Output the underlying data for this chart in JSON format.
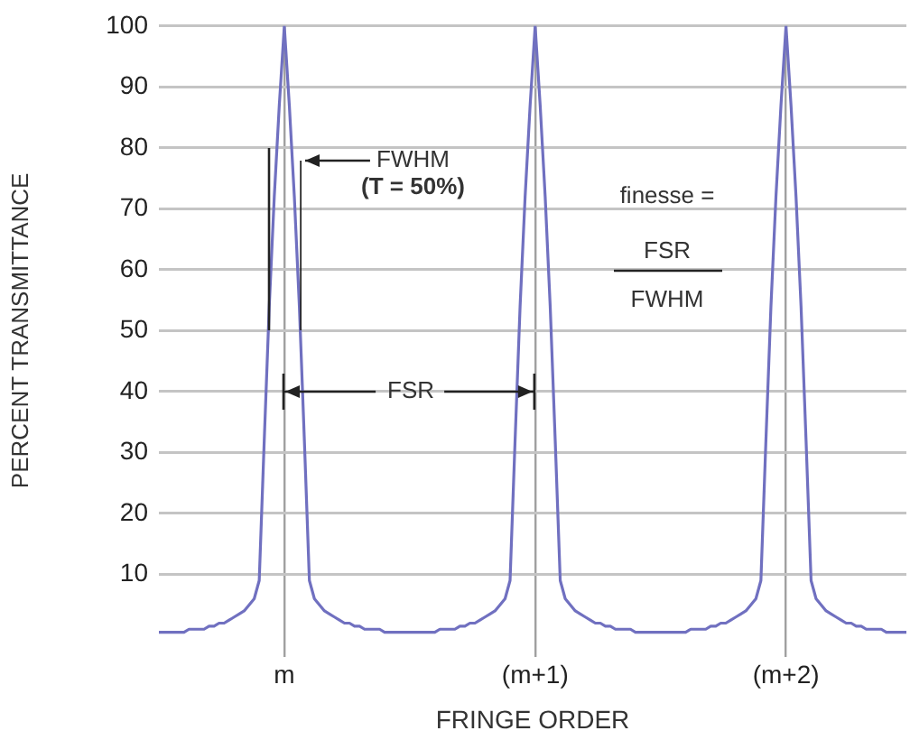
{
  "chart_data": {
    "type": "line",
    "xlabel": "FRINGE ORDER",
    "ylabel": "PERCENT TRANSMITTANCE",
    "categories": [
      null,
      null,
      null,
      null,
      null,
      null,
      null,
      null,
      null,
      null,
      null,
      null,
      null,
      null,
      null,
      null,
      null,
      null,
      null,
      null,
      null,
      null,
      null,
      null,
      null,
      "m",
      null,
      null,
      null,
      null,
      null,
      null,
      null,
      null,
      null,
      null,
      null,
      null,
      null,
      null,
      null,
      null,
      null,
      null,
      null,
      null,
      null,
      null,
      null,
      null,
      null,
      null,
      null,
      null,
      null,
      null,
      null,
      null,
      null,
      null,
      null,
      null,
      null,
      null,
      null,
      null,
      null,
      null,
      null,
      null,
      null,
      null,
      null,
      null,
      null,
      "(m+1)",
      null,
      null,
      null,
      null,
      null,
      null,
      null,
      null,
      null,
      null,
      null,
      null,
      null,
      null,
      null,
      null,
      null,
      null,
      null,
      null,
      null,
      null,
      null,
      null,
      null,
      null,
      null,
      null,
      null,
      null,
      null,
      null,
      null,
      null,
      null,
      null,
      null,
      null,
      null,
      null,
      null,
      null,
      null,
      null,
      null,
      null,
      null,
      null,
      null,
      "(m+2)",
      null,
      null,
      null,
      null,
      null,
      null,
      null,
      null,
      null,
      null,
      null,
      null,
      null,
      null,
      null,
      null,
      null,
      null,
      null,
      null,
      null,
      null,
      null,
      null
    ],
    "series": [
      {
        "color": "#7070c0",
        "values": [
          0.5,
          0.5,
          0.5,
          0.5,
          0.5,
          0.5,
          1,
          1,
          1,
          1,
          1.5,
          1.5,
          2,
          2,
          2.5,
          3,
          3.5,
          4,
          5,
          6,
          9,
          32,
          54,
          72,
          87,
          100,
          87,
          72,
          54,
          32,
          9,
          6,
          5,
          4,
          3.5,
          3,
          2.5,
          2,
          2,
          1.5,
          1.5,
          1,
          1,
          1,
          1,
          0.5,
          0.5,
          0.5,
          0.5,
          0.5,
          0.5,
          0.5,
          0.5,
          0.5,
          0.5,
          0.5,
          1,
          1,
          1,
          1,
          1.5,
          1.5,
          2,
          2,
          2.5,
          3,
          3.5,
          4,
          5,
          6,
          9,
          32,
          54,
          72,
          87,
          100,
          87,
          72,
          54,
          32,
          9,
          6,
          5,
          4,
          3.5,
          3,
          2.5,
          2,
          2,
          1.5,
          1.5,
          1,
          1,
          1,
          1,
          0.5,
          0.5,
          0.5,
          0.5,
          0.5,
          0.5,
          0.5,
          0.5,
          0.5,
          0.5,
          0.5,
          1,
          1,
          1,
          1,
          1.5,
          1.5,
          2,
          2,
          2.5,
          3,
          3.5,
          4,
          5,
          6,
          9,
          32,
          54,
          72,
          87,
          100,
          87,
          72,
          54,
          32,
          9,
          6,
          5,
          4,
          3.5,
          3,
          2.5,
          2,
          2,
          1.5,
          1.5,
          1,
          1,
          1,
          1,
          0.5,
          0.5,
          0.5,
          0.5,
          0.5
        ]
      }
    ],
    "ylim": [
      0,
      100
    ],
    "yticks": [
      10,
      20,
      30,
      40,
      50,
      60,
      70,
      80,
      90,
      100
    ],
    "grid": true,
    "marker": "none",
    "line_style": "solid",
    "legend": false,
    "annotations": [
      "FWHM",
      "(T = 50%)",
      "finesse =",
      "FSR",
      "FWHM",
      "FSR"
    ]
  }
}
